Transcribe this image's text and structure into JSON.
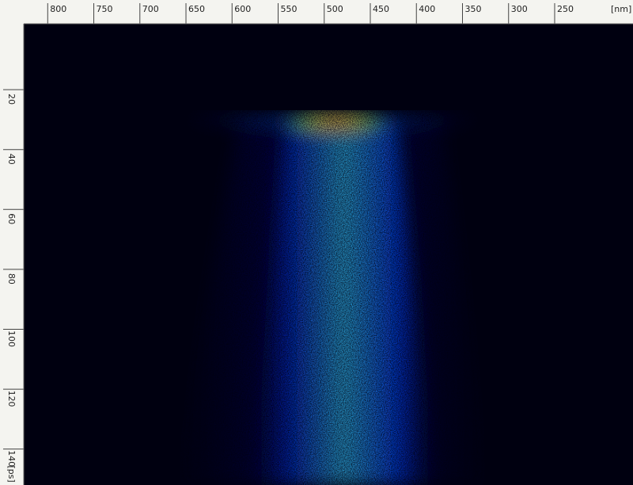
{
  "chart_data": {
    "type": "image",
    "x_label": "[nm]",
    "y_label": "[ps]",
    "xlim": [
      826,
      165
    ],
    "xticks": [
      800,
      750,
      700,
      650,
      600,
      550,
      500,
      450,
      400,
      350,
      300,
      250
    ],
    "ylim": [
      -2,
      152
    ],
    "yticks": [
      20,
      40,
      60,
      80,
      100,
      120,
      140
    ]
  }
}
